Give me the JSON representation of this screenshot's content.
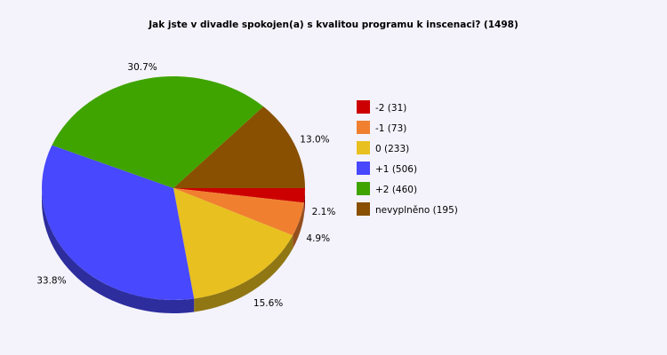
{
  "chart_data": {
    "type": "pie",
    "style": "3d",
    "title": "Jak jste v divadle spokojen(a) s kvalitou programu k inscenaci? (1498)",
    "slices": [
      {
        "label": "-2 (31)",
        "value": 31,
        "percent_label": "2.1%",
        "color": "#cc0000"
      },
      {
        "label": "-1 (73)",
        "value": 73,
        "percent_label": "4.9%",
        "color": "#f08030"
      },
      {
        "label": "0 (233)",
        "value": 233,
        "percent_label": "15.6%",
        "color": "#e8c020"
      },
      {
        "label": "+1 (506)",
        "value": 506,
        "percent_label": "33.8%",
        "color": "#4848ff"
      },
      {
        "label": "+2 (460)",
        "value": 460,
        "percent_label": "30.7%",
        "color": "#40a400"
      },
      {
        "label": "nevyplněno (195)",
        "value": 195,
        "percent_label": "13.0%",
        "color": "#885000"
      }
    ],
    "legend_position": "right"
  }
}
